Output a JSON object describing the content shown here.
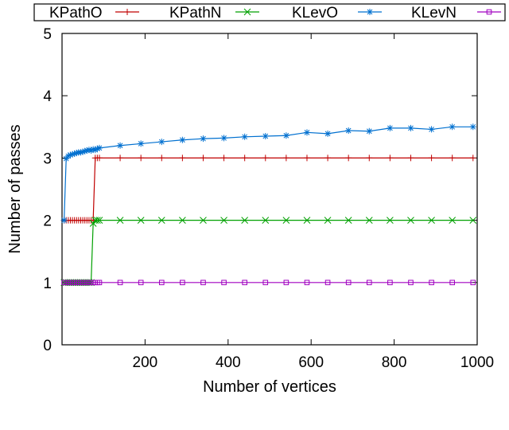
{
  "chart_data": {
    "type": "line",
    "title": "",
    "xlabel": "Number of vertices",
    "ylabel": "Number of passes",
    "xlim": [
      0,
      1000
    ],
    "ylim": [
      0,
      5
    ],
    "xticks": [
      200,
      400,
      600,
      800,
      1000
    ],
    "yticks": [
      0,
      1,
      2,
      3,
      4,
      5
    ],
    "grid": false,
    "legend_position": "top",
    "series": [
      {
        "name": "KPathO",
        "color": "#c00000",
        "marker": "plus",
        "x": [
          5,
          10,
          15,
          20,
          25,
          30,
          35,
          40,
          45,
          50,
          55,
          60,
          65,
          70,
          75,
          80,
          85,
          90,
          140,
          190,
          240,
          290,
          340,
          390,
          440,
          490,
          540,
          590,
          640,
          690,
          740,
          790,
          840,
          890,
          940,
          990
        ],
        "y": [
          2,
          2,
          2,
          2,
          2,
          2,
          2,
          2,
          2,
          2,
          2,
          2,
          2,
          2,
          2,
          3,
          3,
          3,
          3,
          3,
          3,
          3,
          3,
          3,
          3,
          3,
          3,
          3,
          3,
          3,
          3,
          3,
          3,
          3,
          3,
          3
        ]
      },
      {
        "name": "KPathN",
        "color": "#00a000",
        "marker": "cross",
        "x": [
          5,
          10,
          15,
          20,
          25,
          30,
          35,
          40,
          45,
          50,
          55,
          60,
          65,
          70,
          75,
          80,
          85,
          90,
          140,
          190,
          240,
          290,
          340,
          390,
          440,
          490,
          540,
          590,
          640,
          690,
          740,
          790,
          840,
          890,
          940,
          990
        ],
        "y": [
          1,
          1,
          1,
          1,
          1,
          1,
          1,
          1,
          1,
          1,
          1,
          1,
          1,
          1,
          1.95,
          2,
          2,
          2,
          2,
          2,
          2,
          2,
          2,
          2,
          2,
          2,
          2,
          2,
          2,
          2,
          2,
          2,
          2,
          2,
          2,
          2
        ]
      },
      {
        "name": "KLevO",
        "color": "#0070d0",
        "marker": "star",
        "x": [
          5,
          10,
          15,
          20,
          25,
          30,
          35,
          40,
          45,
          50,
          55,
          60,
          65,
          70,
          75,
          80,
          85,
          90,
          140,
          190,
          240,
          290,
          340,
          390,
          440,
          490,
          540,
          590,
          640,
          690,
          740,
          790,
          840,
          890,
          940,
          990
        ],
        "y": [
          2,
          2.99,
          3.03,
          3.05,
          3.06,
          3.07,
          3.08,
          3.09,
          3.09,
          3.1,
          3.11,
          3.12,
          3.13,
          3.12,
          3.14,
          3.13,
          3.15,
          3.16,
          3.2,
          3.23,
          3.26,
          3.29,
          3.31,
          3.32,
          3.34,
          3.35,
          3.36,
          3.41,
          3.39,
          3.44,
          3.43,
          3.48,
          3.48,
          3.46,
          3.5,
          3.5
        ]
      },
      {
        "name": "KLevN",
        "color": "#a000c0",
        "marker": "square",
        "x": [
          5,
          10,
          15,
          20,
          25,
          30,
          35,
          40,
          45,
          50,
          55,
          60,
          65,
          70,
          75,
          80,
          85,
          90,
          140,
          190,
          240,
          290,
          340,
          390,
          440,
          490,
          540,
          590,
          640,
          690,
          740,
          790,
          840,
          890,
          940,
          990
        ],
        "y": [
          1,
          1,
          1,
          1,
          1,
          1,
          1,
          1,
          1,
          1,
          1,
          1,
          1,
          1,
          1,
          1,
          1,
          1,
          1,
          1,
          1,
          1,
          1,
          1,
          1,
          1,
          1,
          1,
          1,
          1,
          1,
          1,
          1,
          1,
          1,
          1
        ]
      }
    ]
  }
}
